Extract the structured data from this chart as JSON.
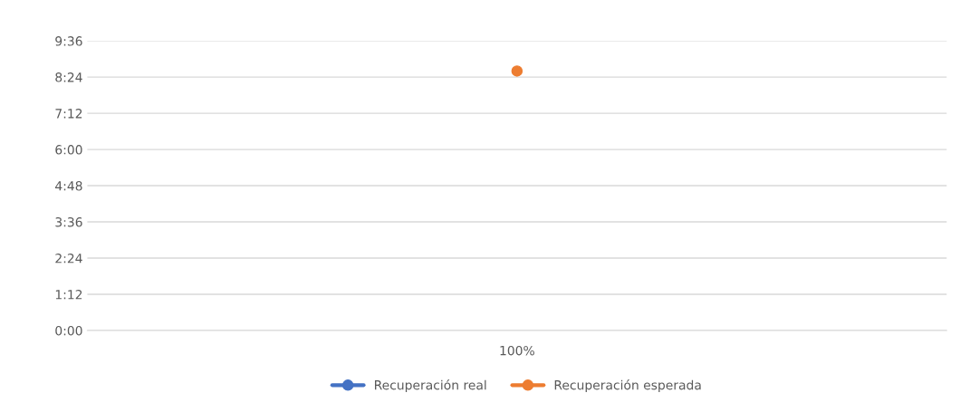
{
  "chart_data": {
    "type": "line",
    "categories": [
      "100%"
    ],
    "series": [
      {
        "name": "Recuperación real",
        "color": "#4472c4",
        "values": [
          null
        ]
      },
      {
        "name": "Recuperación esperada",
        "color": "#ed7d31",
        "values": [
          8.6
        ]
      }
    ],
    "ylim": [
      0,
      9.6
    ],
    "yticks": [
      {
        "value": 0,
        "label": "0:00"
      },
      {
        "value": 1.2,
        "label": "1:12"
      },
      {
        "value": 2.4,
        "label": "2:24"
      },
      {
        "value": 3.6,
        "label": "3:36"
      },
      {
        "value": 4.8,
        "label": "4:48"
      },
      {
        "value": 6,
        "label": "6:00"
      },
      {
        "value": 7.2,
        "label": "7:12"
      },
      {
        "value": 8.4,
        "label": "8:24"
      },
      {
        "value": 9.6,
        "label": "9:36"
      }
    ],
    "grid": "y",
    "legend": "bottom",
    "marker": "circle"
  }
}
